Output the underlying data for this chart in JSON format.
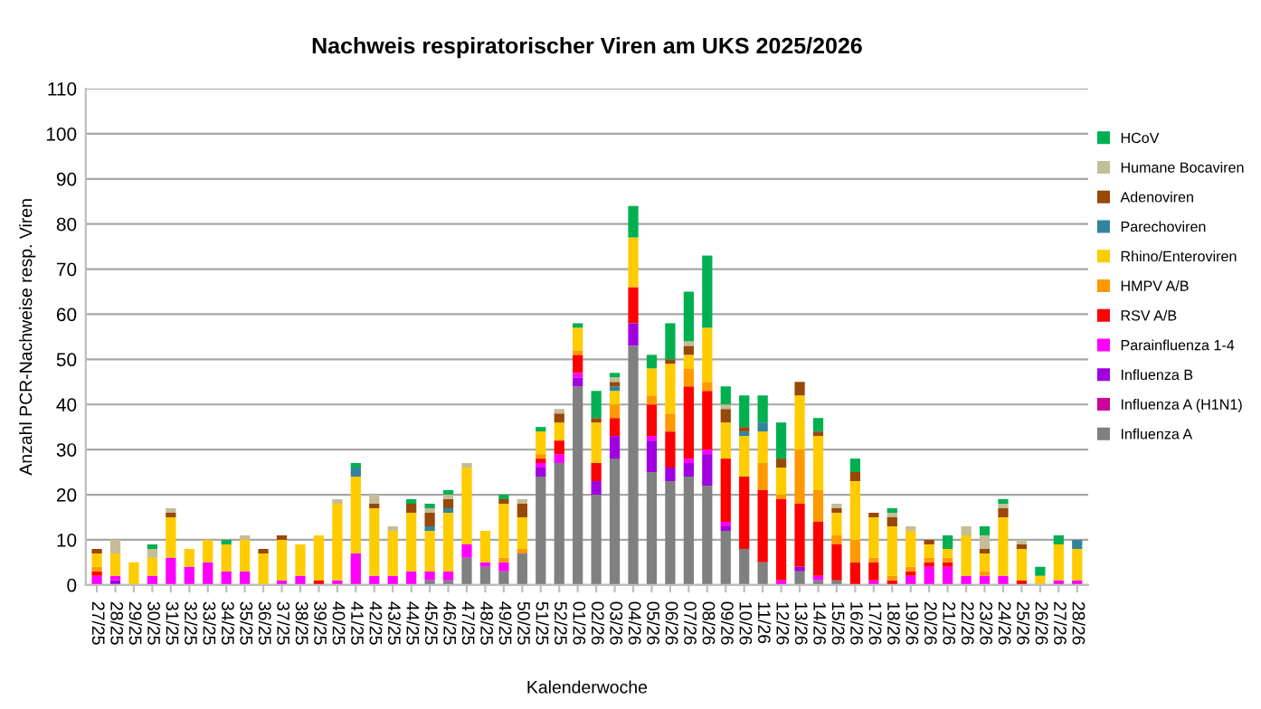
{
  "chart_data": {
    "type": "bar",
    "stacked": true,
    "title": "Nachweis respiratorischer Viren am UKS 2025/2026",
    "xlabel": "Kalenderwoche",
    "ylabel": "Anzahl PCR-Nachweise resp. Viren",
    "categories": [
      "27/25",
      "28/25",
      "29/25",
      "30/25",
      "31/25",
      "32/25",
      "33/25",
      "34/25",
      "35/25",
      "36/25",
      "37/25",
      "38/25",
      "39/25",
      "40/25",
      "41/25",
      "42/25",
      "43/25",
      "44/25",
      "45/25",
      "46/25",
      "47/25",
      "48/25",
      "49/25",
      "50/25",
      "51/25",
      "52/25",
      "01/26",
      "02/26",
      "03/26",
      "04/26",
      "05/26",
      "06/26",
      "07/26",
      "08/26",
      "09/26",
      "10/26",
      "11/26",
      "12/26",
      "13/26",
      "14/26",
      "15/26",
      "16/26",
      "17/26",
      "18/26",
      "19/26",
      "20/26",
      "21/26",
      "22/26",
      "23/26",
      "24/26",
      "25/26",
      "26/26",
      "27/26",
      "28/26"
    ],
    "ylim": [
      0,
      110
    ],
    "yticks": [
      0,
      10,
      20,
      30,
      40,
      50,
      60,
      70,
      80,
      90,
      100,
      110
    ],
    "grid": "y",
    "legend": "right",
    "series": [
      {
        "name": "Influenza A",
        "color": "#808080",
        "values": [
          0,
          0,
          0,
          0,
          0,
          0,
          0,
          0,
          0,
          0,
          0,
          0,
          0,
          0,
          0,
          0,
          0,
          0,
          1,
          1,
          6,
          4,
          3,
          7,
          24,
          27,
          44,
          20,
          28,
          53,
          25,
          23,
          24,
          22,
          12,
          8,
          5,
          0,
          3,
          1,
          1,
          0,
          0,
          0,
          0,
          0,
          0,
          0,
          0,
          0,
          0,
          0,
          0,
          0
        ]
      },
      {
        "name": "Influenza A (H1N1)",
        "color": "#cc0099",
        "values": [
          0,
          0,
          0,
          0,
          0,
          0,
          0,
          0,
          0,
          0,
          0,
          0,
          0,
          0,
          0,
          0,
          0,
          0,
          0,
          0,
          0,
          0,
          0,
          0,
          0,
          0,
          0,
          0,
          0,
          0,
          0,
          0,
          0,
          0,
          0,
          0,
          0,
          0,
          0,
          0,
          0,
          0,
          0,
          0,
          0,
          0,
          0,
          0,
          0,
          0,
          0,
          0,
          0,
          0
        ]
      },
      {
        "name": "Influenza B",
        "color": "#a000e0",
        "values": [
          0,
          1,
          0,
          0,
          0,
          0,
          0,
          0,
          0,
          0,
          0,
          0,
          0,
          0,
          0,
          0,
          0,
          0,
          0,
          0,
          0,
          0,
          0,
          0,
          2,
          0,
          2,
          3,
          5,
          5,
          7,
          3,
          3,
          7,
          1,
          0,
          0,
          0,
          1,
          0,
          0,
          0,
          0,
          0,
          0,
          0,
          0,
          0,
          0,
          0,
          0,
          0,
          0,
          0
        ]
      },
      {
        "name": "Parainfluenza 1-4",
        "color": "#ff00ff",
        "values": [
          2,
          1,
          0,
          2,
          6,
          4,
          5,
          3,
          3,
          0,
          1,
          2,
          0,
          1,
          7,
          2,
          2,
          3,
          2,
          2,
          3,
          1,
          2,
          0,
          1,
          2,
          1,
          0,
          0,
          0,
          1,
          0,
          1,
          1,
          1,
          0,
          0,
          1,
          0,
          1,
          0,
          0,
          1,
          0,
          2,
          4,
          4,
          2,
          2,
          2,
          0,
          0,
          1,
          1
        ]
      },
      {
        "name": "RSV A/B",
        "color": "#ff0000",
        "values": [
          1,
          0,
          0,
          0,
          0,
          0,
          0,
          0,
          0,
          0,
          0,
          0,
          1,
          0,
          0,
          0,
          0,
          0,
          0,
          0,
          0,
          0,
          0,
          0,
          1,
          3,
          4,
          4,
          4,
          8,
          7,
          8,
          16,
          13,
          14,
          16,
          16,
          18,
          14,
          12,
          8,
          5,
          4,
          1,
          1,
          1,
          1,
          0,
          0,
          0,
          1,
          0,
          0,
          0
        ]
      },
      {
        "name": "HMPV A/B",
        "color": "#ff9900",
        "values": [
          1,
          0,
          0,
          0,
          0,
          0,
          0,
          0,
          0,
          0,
          0,
          0,
          0,
          0,
          0,
          0,
          0,
          0,
          0,
          0,
          0,
          0,
          1,
          1,
          1,
          0,
          1,
          0,
          3,
          0,
          2,
          4,
          4,
          2,
          0,
          0,
          6,
          1,
          12,
          7,
          2,
          5,
          1,
          1,
          1,
          1,
          1,
          0,
          1,
          0,
          0,
          0,
          0,
          0
        ]
      },
      {
        "name": "Rhino/Enteroviren",
        "color": "#ffcc00",
        "values": [
          3,
          5,
          5,
          4,
          9,
          4,
          5,
          6,
          7,
          7,
          9,
          7,
          10,
          17,
          17,
          15,
          10,
          13,
          9,
          13,
          17,
          7,
          12,
          7,
          5,
          4,
          5,
          9,
          3,
          11,
          6,
          11,
          3,
          12,
          8,
          9,
          7,
          6,
          12,
          12,
          5,
          13,
          9,
          11,
          8,
          3,
          2,
          9,
          4,
          13,
          7,
          2,
          8,
          7
        ]
      },
      {
        "name": "Parechoviren",
        "color": "#31849b",
        "values": [
          0,
          0,
          0,
          0,
          0,
          0,
          0,
          0,
          0,
          0,
          0,
          0,
          0,
          0,
          2,
          0,
          0,
          0,
          1,
          1,
          0,
          0,
          0,
          0,
          0,
          0,
          0,
          0,
          1,
          0,
          0,
          0,
          0,
          0,
          0,
          1,
          2,
          0,
          0,
          0,
          0,
          0,
          0,
          0,
          0,
          0,
          0,
          0,
          0,
          0,
          0,
          0,
          0,
          2
        ]
      },
      {
        "name": "Adenoviren",
        "color": "#984807",
        "values": [
          1,
          0,
          0,
          0,
          1,
          0,
          0,
          0,
          0,
          1,
          1,
          0,
          0,
          0,
          0,
          1,
          0,
          2,
          3,
          2,
          0,
          0,
          1,
          3,
          0,
          2,
          0,
          1,
          1,
          0,
          0,
          1,
          2,
          0,
          3,
          1,
          0,
          2,
          3,
          1,
          1,
          2,
          1,
          2,
          0,
          1,
          0,
          0,
          1,
          2,
          1,
          0,
          0,
          0
        ]
      },
      {
        "name": "Humane Bocaviren",
        "color": "#c4bd97",
        "values": [
          0,
          3,
          0,
          2,
          1,
          0,
          0,
          0,
          1,
          0,
          0,
          0,
          0,
          1,
          0,
          2,
          1,
          0,
          1,
          1,
          1,
          0,
          0,
          1,
          0,
          1,
          0,
          0,
          1,
          0,
          0,
          0,
          1,
          0,
          1,
          0,
          0,
          0,
          0,
          0,
          1,
          0,
          0,
          1,
          1,
          0,
          0,
          2,
          3,
          1,
          1,
          0,
          0,
          0
        ]
      },
      {
        "name": "HCoV",
        "color": "#00b050",
        "values": [
          0,
          0,
          0,
          1,
          0,
          0,
          0,
          1,
          0,
          0,
          0,
          0,
          0,
          0,
          1,
          0,
          0,
          1,
          1,
          1,
          0,
          0,
          1,
          0,
          1,
          0,
          1,
          6,
          1,
          7,
          3,
          8,
          11,
          16,
          4,
          7,
          6,
          8,
          0,
          3,
          0,
          3,
          0,
          1,
          0,
          0,
          3,
          0,
          2,
          1,
          0,
          2,
          2,
          0
        ]
      }
    ]
  }
}
